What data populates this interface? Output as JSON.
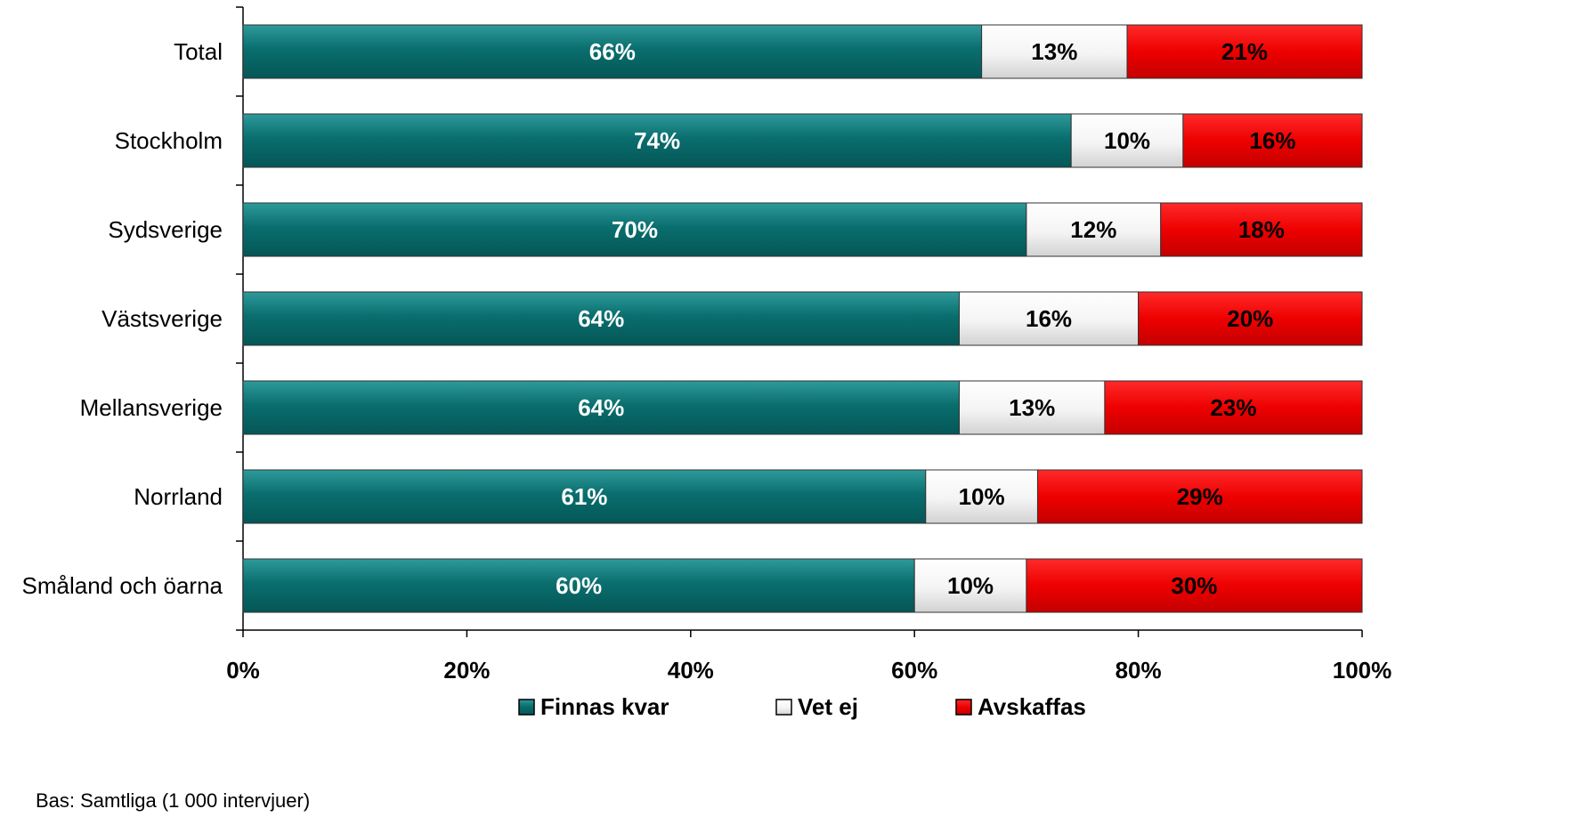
{
  "chart_data": {
    "type": "bar",
    "orientation": "horizontal",
    "stacked": true,
    "categories": [
      "Total",
      "Stockholm",
      "Sydsverige",
      "Västsverige",
      "Mellansverige",
      "Norrland",
      "Småland och öarna"
    ],
    "series": [
      {
        "name": "Finnas kvar",
        "values": [
          66,
          74,
          70,
          64,
          64,
          61,
          60
        ],
        "labels": [
          "66%",
          "74%",
          "70%",
          "64%",
          "64%",
          "61%",
          "60%"
        ],
        "color": "#0a6e6e",
        "label_color": "#ffffff"
      },
      {
        "name": "Vet ej",
        "values": [
          13,
          10,
          12,
          16,
          13,
          10,
          10
        ],
        "labels": [
          "13%",
          "10%",
          "12%",
          "16%",
          "13%",
          "10%",
          "10%"
        ],
        "color": "#ffffff",
        "label_color": "#000000"
      },
      {
        "name": "Avskaffas",
        "values": [
          21,
          16,
          18,
          20,
          23,
          29,
          30
        ],
        "labels": [
          "21%",
          "16%",
          "18%",
          "20%",
          "23%",
          "29%",
          "30%"
        ],
        "color": "#ee0000",
        "label_color": "#000000"
      }
    ],
    "xlim": [
      0,
      100
    ],
    "xticks": [
      0,
      20,
      40,
      60,
      80,
      100
    ],
    "xtick_labels": [
      "0%",
      "20%",
      "40%",
      "60%",
      "80%",
      "100%"
    ],
    "grid": false,
    "legend": "bottom"
  },
  "footnote": "Bas: Samtliga (1 000 intervjuer)"
}
